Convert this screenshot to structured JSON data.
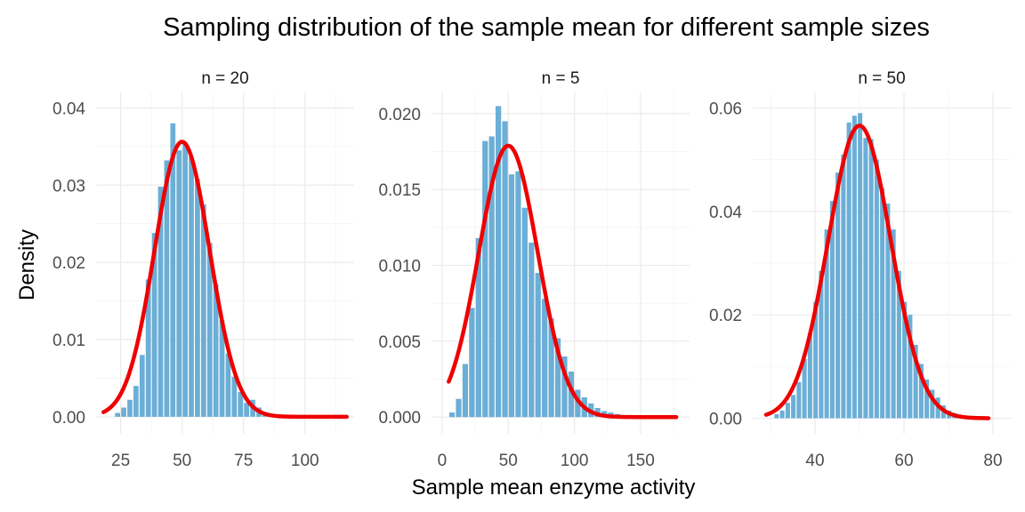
{
  "chart_data": {
    "type": "bar",
    "title": "Sampling distribution of the sample mean for different sample sizes",
    "xlabel": "Sample mean enzyme activity",
    "ylabel": "Density",
    "colors": {
      "bars": "#6baed6",
      "curve": "#ee0000",
      "grid": "#ebebeb"
    },
    "grid": true,
    "panels": [
      {
        "label": "n = 20",
        "xlim": [
          15,
          120
        ],
        "ylim": [
          -0.0022,
          0.042
        ],
        "xticks": [
          25,
          50,
          75,
          100
        ],
        "xtick_labels": [
          "25",
          "50",
          "75",
          "100"
        ],
        "yticks": [
          0,
          0.01,
          0.02,
          0.03,
          0.04
        ],
        "ytick_labels": [
          "0.00",
          "0.01",
          "0.02",
          "0.03",
          "0.04"
        ],
        "binwidth": 2.5,
        "bins": [
          {
            "x": 23.75,
            "y": 0.0005
          },
          {
            "x": 26.25,
            "y": 0.0012
          },
          {
            "x": 28.75,
            "y": 0.0022
          },
          {
            "x": 31.25,
            "y": 0.004
          },
          {
            "x": 33.75,
            "y": 0.008
          },
          {
            "x": 36.25,
            "y": 0.0178
          },
          {
            "x": 38.75,
            "y": 0.0238
          },
          {
            "x": 41.25,
            "y": 0.0298
          },
          {
            "x": 43.75,
            "y": 0.0332
          },
          {
            "x": 46.25,
            "y": 0.038
          },
          {
            "x": 48.75,
            "y": 0.0345
          },
          {
            "x": 51.25,
            "y": 0.0355
          },
          {
            "x": 53.75,
            "y": 0.0336
          },
          {
            "x": 56.25,
            "y": 0.0308
          },
          {
            "x": 58.75,
            "y": 0.0275
          },
          {
            "x": 61.25,
            "y": 0.0225
          },
          {
            "x": 63.75,
            "y": 0.0172
          },
          {
            "x": 66.25,
            "y": 0.0125
          },
          {
            "x": 68.75,
            "y": 0.0082
          },
          {
            "x": 71.25,
            "y": 0.0052
          },
          {
            "x": 73.75,
            "y": 0.0032
          },
          {
            "x": 76.25,
            "y": 0.0018
          },
          {
            "x": 78.75,
            "y": 0.0022
          },
          {
            "x": 81.25,
            "y": 0.0012
          },
          {
            "x": 83.75,
            "y": 0.0006
          },
          {
            "x": 86.25,
            "y": 0.0003
          },
          {
            "x": 88.75,
            "y": 0.0002
          },
          {
            "x": 91.25,
            "y": 0.0001
          }
        ],
        "curve": {
          "mean": 50,
          "sd": 11.2,
          "from": 18,
          "to": 117
        }
      },
      {
        "label": "n = 5",
        "xlim": [
          -8,
          187
        ],
        "ylim": [
          -0.0011,
          0.0214
        ],
        "xticks": [
          0,
          50,
          100,
          150
        ],
        "xtick_labels": [
          "0",
          "50",
          "100",
          "150"
        ],
        "yticks": [
          0,
          0.005,
          0.01,
          0.015,
          0.02
        ],
        "ytick_labels": [
          "0.000",
          "0.005",
          "0.010",
          "0.015",
          "0.020"
        ],
        "binwidth": 5,
        "bins": [
          {
            "x": 7.5,
            "y": 0.0003
          },
          {
            "x": 12.5,
            "y": 0.0012
          },
          {
            "x": 17.5,
            "y": 0.0035
          },
          {
            "x": 22.5,
            "y": 0.0072
          },
          {
            "x": 27.5,
            "y": 0.0118
          },
          {
            "x": 32.5,
            "y": 0.0182
          },
          {
            "x": 37.5,
            "y": 0.0185
          },
          {
            "x": 42.5,
            "y": 0.0205
          },
          {
            "x": 47.5,
            "y": 0.0195
          },
          {
            "x": 52.5,
            "y": 0.016
          },
          {
            "x": 57.5,
            "y": 0.0162
          },
          {
            "x": 62.5,
            "y": 0.0138
          },
          {
            "x": 67.5,
            "y": 0.0115
          },
          {
            "x": 72.5,
            "y": 0.0095
          },
          {
            "x": 77.5,
            "y": 0.0078
          },
          {
            "x": 82.5,
            "y": 0.0065
          },
          {
            "x": 87.5,
            "y": 0.0052
          },
          {
            "x": 92.5,
            "y": 0.004
          },
          {
            "x": 97.5,
            "y": 0.003
          },
          {
            "x": 102.5,
            "y": 0.0018
          },
          {
            "x": 107.5,
            "y": 0.0013
          },
          {
            "x": 112.5,
            "y": 0.0009
          },
          {
            "x": 117.5,
            "y": 0.0006
          },
          {
            "x": 122.5,
            "y": 0.0004
          },
          {
            "x": 127.5,
            "y": 0.0003
          },
          {
            "x": 132.5,
            "y": 0.0002
          },
          {
            "x": 137.5,
            "y": 0.0001
          }
        ],
        "curve": {
          "mean": 50,
          "sd": 22.3,
          "from": 5,
          "to": 177
        }
      },
      {
        "label": "n = 50",
        "xlim": [
          26,
          84
        ],
        "ylim": [
          -0.003,
          0.063
        ],
        "xticks": [
          40,
          60,
          80
        ],
        "xtick_labels": [
          "40",
          "60",
          "80"
        ],
        "yticks": [
          0,
          0.02,
          0.04,
          0.06
        ],
        "ytick_labels": [
          "0.00",
          "0.02",
          "0.04",
          "0.06"
        ],
        "binwidth": 1.25,
        "bins": [
          {
            "x": 31.375,
            "y": 0.0008
          },
          {
            "x": 32.625,
            "y": 0.0015
          },
          {
            "x": 33.875,
            "y": 0.003
          },
          {
            "x": 35.125,
            "y": 0.0045
          },
          {
            "x": 36.375,
            "y": 0.007
          },
          {
            "x": 37.625,
            "y": 0.0115
          },
          {
            "x": 38.875,
            "y": 0.0165
          },
          {
            "x": 40.125,
            "y": 0.0225
          },
          {
            "x": 41.375,
            "y": 0.0285
          },
          {
            "x": 42.625,
            "y": 0.0365
          },
          {
            "x": 43.875,
            "y": 0.042
          },
          {
            "x": 45.125,
            "y": 0.0475
          },
          {
            "x": 46.375,
            "y": 0.051
          },
          {
            "x": 47.625,
            "y": 0.0572
          },
          {
            "x": 48.875,
            "y": 0.0585
          },
          {
            "x": 50.125,
            "y": 0.059
          },
          {
            "x": 51.375,
            "y": 0.0542
          },
          {
            "x": 52.625,
            "y": 0.054
          },
          {
            "x": 53.875,
            "y": 0.05
          },
          {
            "x": 55.125,
            "y": 0.0445
          },
          {
            "x": 56.375,
            "y": 0.0415
          },
          {
            "x": 57.625,
            "y": 0.0365
          },
          {
            "x": 58.875,
            "y": 0.0285
          },
          {
            "x": 60.125,
            "y": 0.0225
          },
          {
            "x": 61.375,
            "y": 0.02
          },
          {
            "x": 62.625,
            "y": 0.0142
          },
          {
            "x": 63.875,
            "y": 0.0105
          },
          {
            "x": 65.125,
            "y": 0.0075
          },
          {
            "x": 66.375,
            "y": 0.0055
          },
          {
            "x": 67.625,
            "y": 0.004
          },
          {
            "x": 68.875,
            "y": 0.0025
          },
          {
            "x": 70.125,
            "y": 0.0015
          },
          {
            "x": 71.375,
            "y": 0.001
          },
          {
            "x": 72.625,
            "y": 0.0005
          },
          {
            "x": 73.875,
            "y": 0.0003
          },
          {
            "x": 75.125,
            "y": 0.0002
          }
        ],
        "curve": {
          "mean": 50,
          "sd": 7.05,
          "from": 29,
          "to": 79
        }
      }
    ]
  }
}
